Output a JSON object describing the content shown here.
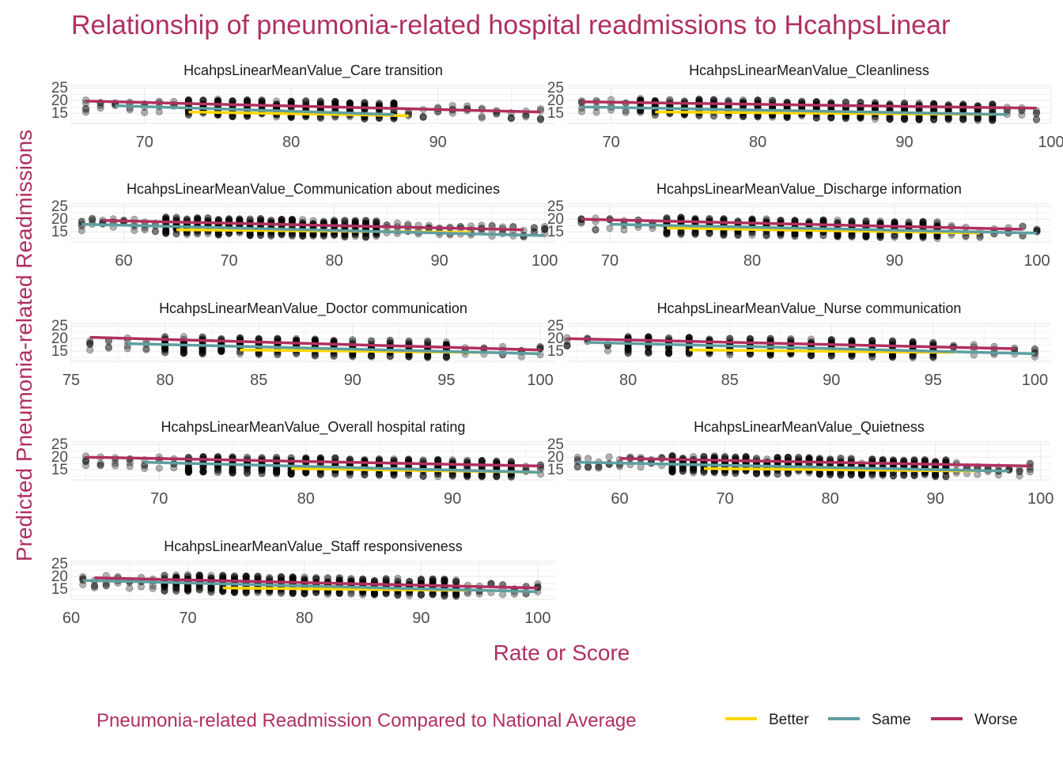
{
  "chart_data": {
    "type": "scatter",
    "title": "Relationship of pneumonia-related hospital readmissions to HcahpsLinear",
    "xlabel": "Rate or Score",
    "ylabel": "Predicted Pneumonia-related Readmissions",
    "legend": {
      "title": "Pneumonia-related Readmission Compared to National Average",
      "placement": "bottom",
      "entries": [
        {
          "name": "Better",
          "color": "#FFD700"
        },
        {
          "name": "Same",
          "color": "#5F9EA0"
        },
        {
          "name": "Worse",
          "color": "#B03060"
        }
      ]
    },
    "colors": {
      "title": "#B03060",
      "points": "#000000",
      "grid": "#EBEBEB"
    },
    "grid": true,
    "y_ticks": [
      "15",
      "20",
      "25"
    ],
    "ylim": [
      11,
      26
    ],
    "panels": [
      {
        "title": "HcahpsLinearMeanValue_Care transition",
        "xlim": [
          65,
          98
        ],
        "x_ticks": [
          70,
          80,
          90
        ],
        "x_tick_labels": [
          "70",
          "80",
          "90"
        ],
        "points": {
          "xmin": 66,
          "xmax": 97,
          "dense": [
            73,
            87
          ]
        },
        "lines": [
          {
            "series": "Better",
            "x": [
              73,
              88
            ],
            "y": [
              15.5,
              14.0
            ]
          },
          {
            "series": "Same",
            "x": [
              68,
              87
            ],
            "y": [
              18.0,
              14.5
            ]
          },
          {
            "series": "Worse",
            "x": [
              66,
              97
            ],
            "y": [
              19.8,
              15.5
            ]
          }
        ]
      },
      {
        "title": "HcahpsLinearMeanValue_Cleanliness",
        "xlim": [
          67,
          100
        ],
        "x_ticks": [
          70,
          80,
          90,
          100
        ],
        "x_tick_labels": [
          "70",
          "80",
          "90",
          "100"
        ],
        "points": {
          "xmin": 68,
          "xmax": 99,
          "dense": [
            72,
            96
          ]
        },
        "lines": [
          {
            "series": "Better",
            "x": [
              73,
              96
            ],
            "y": [
              15.5,
              14.5
            ]
          },
          {
            "series": "Same",
            "x": [
              68,
              97
            ],
            "y": [
              17.5,
              14.5
            ]
          },
          {
            "series": "Worse",
            "x": [
              68,
              99
            ],
            "y": [
              19.5,
              17.0
            ]
          }
        ]
      },
      {
        "title": "HcahpsLinearMeanValue_Communication about medicines",
        "xlim": [
          55,
          101
        ],
        "x_ticks": [
          60,
          70,
          80,
          90,
          100
        ],
        "x_tick_labels": [
          "60",
          "70",
          "80",
          "90",
          "100"
        ],
        "points": {
          "xmin": 56,
          "xmax": 100,
          "dense": [
            64,
            84
          ]
        },
        "lines": [
          {
            "series": "Better",
            "x": [
              65,
              93
            ],
            "y": [
              15.8,
              14.8
            ]
          },
          {
            "series": "Same",
            "x": [
              56,
              100
            ],
            "y": [
              18.0,
              13.5
            ]
          },
          {
            "series": "Worse",
            "x": [
              58,
              98
            ],
            "y": [
              19.5,
              15.8
            ]
          }
        ]
      },
      {
        "title": "HcahpsLinearMeanValue_Discharge information",
        "xlim": [
          67,
          101
        ],
        "x_ticks": [
          70,
          80,
          90,
          100
        ],
        "x_tick_labels": [
          "70",
          "80",
          "90",
          "100"
        ],
        "points": {
          "xmin": 68,
          "xmax": 100,
          "dense": [
            74,
            93
          ]
        },
        "lines": [
          {
            "series": "Better",
            "x": [
              74,
              96
            ],
            "y": [
              16.5,
              14.5
            ]
          },
          {
            "series": "Same",
            "x": [
              70,
              100
            ],
            "y": [
              18.0,
              14.5
            ]
          },
          {
            "series": "Worse",
            "x": [
              68,
              99
            ],
            "y": [
              20.0,
              16.0
            ]
          }
        ]
      },
      {
        "title": "HcahpsLinearMeanValue_Doctor communication",
        "xlim": [
          75,
          100.8
        ],
        "x_ticks": [
          75,
          80,
          85,
          90,
          95,
          100
        ],
        "x_tick_labels": [
          "75",
          "80",
          "85",
          "90",
          "95",
          "100"
        ],
        "points": {
          "xmin": 76,
          "xmax": 100,
          "dense": [
            80,
            95
          ]
        },
        "lines": [
          {
            "series": "Better",
            "x": [
              84,
              97
            ],
            "y": [
              15.5,
              14.5
            ]
          },
          {
            "series": "Same",
            "x": [
              78,
              100
            ],
            "y": [
              18.0,
              14.0
            ]
          },
          {
            "series": "Worse",
            "x": [
              76,
              100
            ],
            "y": [
              20.5,
              15.5
            ]
          }
        ]
      },
      {
        "title": "HcahpsLinearMeanValue_Nurse communication",
        "xlim": [
          77,
          100.8
        ],
        "x_ticks": [
          80,
          85,
          90,
          95,
          100
        ],
        "x_tick_labels": [
          "80",
          "85",
          "90",
          "95",
          "100"
        ],
        "points": {
          "xmin": 77,
          "xmax": 100,
          "dense": [
            80,
            95
          ]
        },
        "lines": [
          {
            "series": "Better",
            "x": [
              83,
              96
            ],
            "y": [
              15.5,
              14.5
            ]
          },
          {
            "series": "Same",
            "x": [
              78,
              100
            ],
            "y": [
              18.5,
              14.0
            ]
          },
          {
            "series": "Worse",
            "x": [
              77,
              99
            ],
            "y": [
              20.0,
              16.0
            ]
          }
        ]
      },
      {
        "title": "HcahpsLinearMeanValue_Overall hospital rating",
        "xlim": [
          64,
          97
        ],
        "x_ticks": [
          70,
          80,
          90
        ],
        "x_tick_labels": [
          "70",
          "80",
          "90"
        ],
        "points": {
          "xmin": 65,
          "xmax": 96,
          "dense": [
            72,
            94
          ]
        },
        "lines": [
          {
            "series": "Better",
            "x": [
              79,
              96
            ],
            "y": [
              15.5,
              14.0
            ]
          },
          {
            "series": "Same",
            "x": [
              69,
              96
            ],
            "y": [
              18.0,
              14.0
            ]
          },
          {
            "series": "Worse",
            "x": [
              65,
              96
            ],
            "y": [
              20.0,
              16.5
            ]
          }
        ]
      },
      {
        "title": "HcahpsLinearMeanValue_Quietness",
        "xlim": [
          55,
          101
        ],
        "x_ticks": [
          60,
          70,
          80,
          90,
          100
        ],
        "x_tick_labels": [
          "60",
          "70",
          "80",
          "90",
          "100"
        ],
        "points": {
          "xmin": 56,
          "xmax": 99,
          "dense": [
            65,
            91
          ]
        },
        "lines": [
          {
            "series": "Better",
            "x": [
              68,
              94
            ],
            "y": [
              15.5,
              14.5
            ]
          },
          {
            "series": "Same",
            "x": [
              56,
              97
            ],
            "y": [
              18.0,
              14.5
            ]
          },
          {
            "series": "Worse",
            "x": [
              60,
              99
            ],
            "y": [
              19.5,
              16.5
            ]
          }
        ]
      },
      {
        "title": "HcahpsLinearMeanValue_Staff responsiveness",
        "xlim": [
          60,
          101.5
        ],
        "x_ticks": [
          60,
          70,
          80,
          90,
          100
        ],
        "x_tick_labels": [
          "60",
          "70",
          "80",
          "90",
          "100"
        ],
        "points": {
          "xmin": 61,
          "xmax": 100,
          "dense": [
            68,
            93
          ]
        },
        "lines": [
          {
            "series": "Better",
            "x": [
              73,
              94
            ],
            "y": [
              15.5,
              14.5
            ]
          },
          {
            "series": "Same",
            "x": [
              61,
              100
            ],
            "y": [
              18.5,
              14.0
            ]
          },
          {
            "series": "Worse",
            "x": [
              62,
              100
            ],
            "y": [
              19.5,
              15.5
            ]
          }
        ]
      }
    ]
  }
}
